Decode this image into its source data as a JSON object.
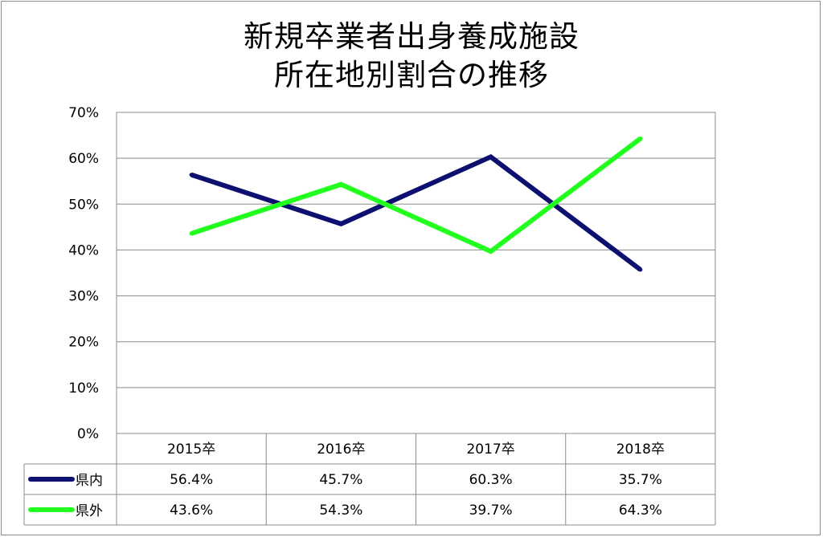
{
  "chart_data": {
    "type": "line",
    "title": [
      "新規卒業者出身養成施設",
      "所在地別割合の推移"
    ],
    "categories": [
      "2015卒",
      "2016卒",
      "2017卒",
      "2018卒"
    ],
    "y_ticks": [
      "0%",
      "10%",
      "20%",
      "30%",
      "40%",
      "50%",
      "60%",
      "70%"
    ],
    "ylim": [
      0,
      70
    ],
    "grid": true,
    "legend": "data-table",
    "series": [
      {
        "name": "県内",
        "color": "#0d1070",
        "values": [
          56.4,
          45.7,
          60.3,
          35.7
        ],
        "labels": [
          "56.4%",
          "45.7%",
          "60.3%",
          "35.7%"
        ]
      },
      {
        "name": "県外",
        "color": "#22ff1e",
        "values": [
          43.6,
          54.3,
          39.7,
          64.3
        ],
        "labels": [
          "43.6%",
          "54.3%",
          "39.7%",
          "64.3%"
        ]
      }
    ]
  }
}
